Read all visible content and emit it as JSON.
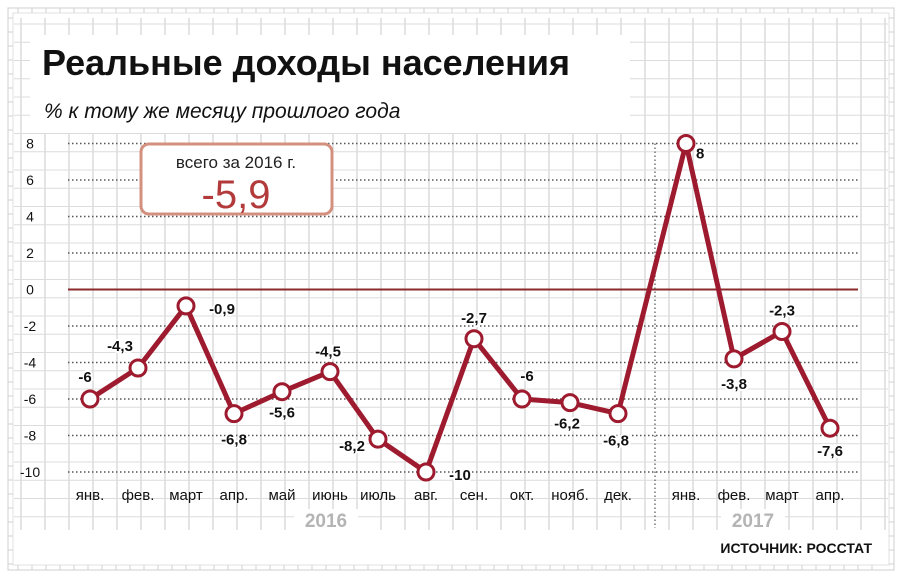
{
  "title": "Реальные доходы населения",
  "subtitle": "% к тому же месяцу прошлого года",
  "summary_box": {
    "label": "всего за 2016 г.",
    "value": "-5,9"
  },
  "source": "ИСТОЧНИК: РОССТАТ",
  "colors": {
    "line": "#9e1b2f",
    "zero_line": "#8b2a2a",
    "box_border": "#d4907e",
    "box_value": "#b23a3a",
    "year_label": "#b4b4b4",
    "grid": "#c8c8c8"
  },
  "chart_data": {
    "type": "line",
    "title": "Реальные доходы населения",
    "subtitle": "% к тому же месяцу прошлого года",
    "ylim": [
      -10,
      8
    ],
    "yticks": [
      8,
      6,
      4,
      2,
      0,
      -2,
      -4,
      -6,
      -8,
      -10
    ],
    "ytick_labels": [
      "8",
      "6",
      "4",
      "2",
      "0",
      "-2",
      "-4",
      "-6",
      "-8",
      "-10"
    ],
    "grid": true,
    "groups": [
      {
        "name": "2016",
        "categories": [
          "янв.",
          "фев.",
          "март",
          "апр.",
          "май",
          "июнь",
          "июль",
          "авг.",
          "сен.",
          "окт.",
          "нояб.",
          "дек."
        ]
      },
      {
        "name": "2017",
        "categories": [
          "янв.",
          "фев.",
          "март",
          "апр."
        ]
      }
    ],
    "series": [
      {
        "values": [
          -6,
          -4.3,
          -0.9,
          -6.8,
          -5.6,
          -4.5,
          -8.2,
          -10,
          -2.7,
          -6,
          -6.2,
          -6.8,
          8,
          -3.8,
          -2.3,
          -7.6
        ],
        "labels": [
          "-6",
          "-4,3",
          "-0,9",
          "-6,8",
          "-5,6",
          "-4,5",
          "-8,2",
          "-10",
          "-2,7",
          "-6",
          "-6,2",
          "-6,8",
          "8",
          "-3,8",
          "-2,3",
          "-7,6"
        ]
      }
    ]
  }
}
